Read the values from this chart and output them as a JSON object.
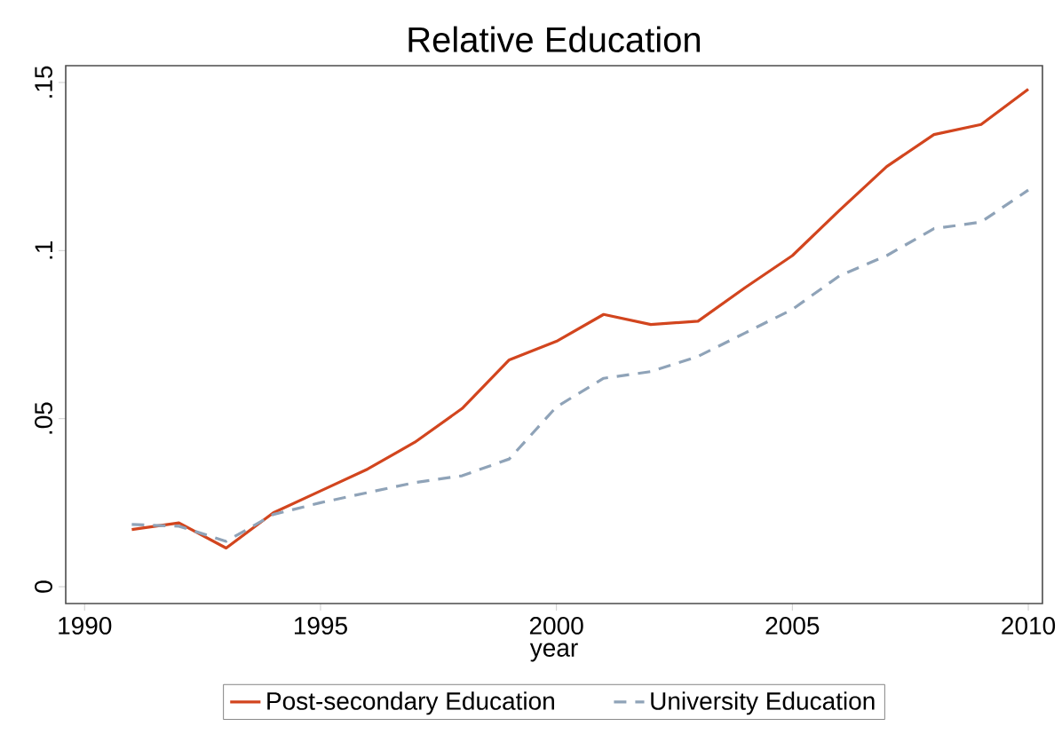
{
  "chart_data": {
    "type": "line",
    "title": "Relative Education",
    "xlabel": "year",
    "x": [
      1991,
      1992,
      1993,
      1994,
      1995,
      1996,
      1997,
      1998,
      1999,
      2000,
      2001,
      2002,
      2003,
      2004,
      2005,
      2006,
      2007,
      2008,
      2009,
      2010
    ],
    "series": [
      {
        "name": "Post-secondary Education",
        "color": "#d2451e",
        "line_style": "solid",
        "values": [
          0.017,
          0.019,
          0.0115,
          0.022,
          0.0285,
          0.035,
          0.043,
          0.053,
          0.0675,
          0.073,
          0.081,
          0.078,
          0.079,
          0.089,
          0.0985,
          0.112,
          0.125,
          0.1345,
          0.1375,
          0.148
        ]
      },
      {
        "name": "University Education",
        "color": "#8fa3b8",
        "line_style": "dashed",
        "values": [
          0.0185,
          0.018,
          0.0135,
          0.0215,
          0.025,
          0.028,
          0.031,
          0.033,
          0.038,
          0.0535,
          0.062,
          0.064,
          0.0685,
          0.0755,
          0.0825,
          0.0925,
          0.0985,
          0.1065,
          0.1085,
          0.118
        ]
      }
    ],
    "xlim": [
      1989.6,
      2010.3
    ],
    "ylim": [
      -0.005,
      0.155
    ],
    "xticks": [
      1990,
      1995,
      2000,
      2005,
      2010
    ],
    "yticks": [
      {
        "value": 0,
        "label": "0"
      },
      {
        "value": 0.05,
        "label": ".05"
      },
      {
        "value": 0.1,
        "label": ".1"
      },
      {
        "value": 0.15,
        "label": ".15"
      }
    ],
    "grid": false,
    "legend": "bottom",
    "marker": "none"
  }
}
